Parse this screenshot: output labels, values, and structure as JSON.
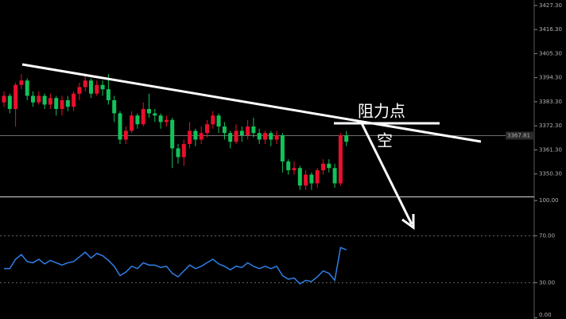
{
  "chart_data": {
    "type": "candlestick",
    "up_color": "#e8102c",
    "down_color": "#13c25a",
    "open": [
      3383,
      3386,
      3380,
      3391,
      3393,
      3386,
      3383,
      3386,
      3382,
      3385,
      3380,
      3384,
      3381,
      3387,
      3390,
      3393,
      3387,
      3391,
      3389,
      3384,
      3378,
      3366,
      3370,
      3377,
      3373,
      3380,
      3378,
      3377,
      3374,
      3375,
      3362,
      3358,
      3364,
      3370,
      3366,
      3369,
      3373,
      3377,
      3372,
      3369,
      3365,
      3370,
      3368,
      3372,
      3369,
      3366,
      3369,
      3366,
      3368,
      3356,
      3352,
      3353,
      3345,
      3350,
      3346,
      3352,
      3355,
      3353,
      3346,
      3368
    ],
    "high": [
      3388,
      3387,
      3392,
      3396,
      3394,
      3388,
      3388,
      3387,
      3387,
      3386,
      3386,
      3386,
      3388,
      3392,
      3395,
      3394,
      3393,
      3393,
      3396,
      3386,
      3379,
      3372,
      3379,
      3378,
      3383,
      3387,
      3380,
      3378,
      3377,
      3376,
      3364,
      3366,
      3374,
      3371,
      3372,
      3375,
      3379,
      3378,
      3374,
      3370,
      3373,
      3372,
      3375,
      3376,
      3371,
      3370,
      3370,
      3370,
      3369,
      3357,
      3356,
      3354,
      3352,
      3351,
      3353,
      3357,
      3357,
      3355,
      3369,
      3370
    ],
    "low": [
      3381,
      3378,
      3372,
      3389,
      3384,
      3381,
      3382,
      3380,
      3380,
      3377,
      3377,
      3379,
      3379,
      3384,
      3388,
      3385,
      3386,
      3386,
      3382,
      3374,
      3364,
      3364,
      3369,
      3371,
      3372,
      3376,
      3374,
      3371,
      3372,
      3353,
      3355,
      3354,
      3362,
      3363,
      3364,
      3367,
      3371,
      3369,
      3366,
      3362,
      3364,
      3365,
      3366,
      3367,
      3364,
      3364,
      3363,
      3364,
      3351,
      3350,
      3350,
      3343,
      3343,
      3343,
      3344,
      3350,
      3351,
      3344,
      3345,
      3363
    ],
    "close": [
      3386,
      3380,
      3391,
      3393,
      3386,
      3383,
      3386,
      3382,
      3385,
      3380,
      3384,
      3381,
      3387,
      3390,
      3393,
      3387,
      3391,
      3389,
      3384,
      3378,
      3366,
      3370,
      3377,
      3373,
      3380,
      3378,
      3377,
      3374,
      3375,
      3362,
      3358,
      3364,
      3370,
      3366,
      3369,
      3373,
      3377,
      3372,
      3369,
      3365,
      3370,
      3368,
      3372,
      3369,
      3366,
      3369,
      3366,
      3368,
      3356,
      3352,
      3353,
      3345,
      3350,
      3346,
      3352,
      3355,
      3353,
      3346,
      3368,
      3365
    ],
    "ylim": [
      3340,
      3429.8
    ],
    "yticks": [
      {
        "value": 3427.3,
        "label": "3427.30"
      },
      {
        "value": 3416.3,
        "label": "3416.30"
      },
      {
        "value": 3405.3,
        "label": "3405.30"
      },
      {
        "value": 3394.3,
        "label": "3394.30"
      },
      {
        "value": 3383.3,
        "label": "3383.30"
      },
      {
        "value": 3372.3,
        "label": "3372.30"
      },
      {
        "value": 3361.3,
        "label": "3361.30"
      },
      {
        "value": 3350.3,
        "label": "3350.30"
      }
    ],
    "last_price": 3367.81,
    "annotations": [
      "阻力点",
      "空"
    ],
    "indicator": {
      "color": "#2f7fe6",
      "values": [
        42,
        42,
        50,
        54,
        48,
        47,
        50,
        46,
        49,
        47,
        45,
        47,
        48,
        52,
        56,
        51,
        55,
        53,
        49,
        44,
        36,
        39,
        44,
        42,
        47,
        45,
        45,
        43,
        44,
        38,
        35,
        40,
        45,
        42,
        44,
        47,
        50,
        46,
        44,
        41,
        44,
        43,
        47,
        44,
        42,
        44,
        42,
        44,
        36,
        33,
        34,
        29,
        32,
        31,
        35,
        40,
        38,
        32,
        60,
        58
      ],
      "ylim": [
        -1,
        101.5
      ],
      "yticks": [
        {
          "value": 100,
          "label": "100.00"
        },
        {
          "value": 70,
          "label": "70.00"
        },
        {
          "value": 30,
          "label": "30.00"
        },
        {
          "value": 0,
          "label": "0.00"
        }
      ],
      "levels": [
        70,
        30
      ]
    }
  }
}
